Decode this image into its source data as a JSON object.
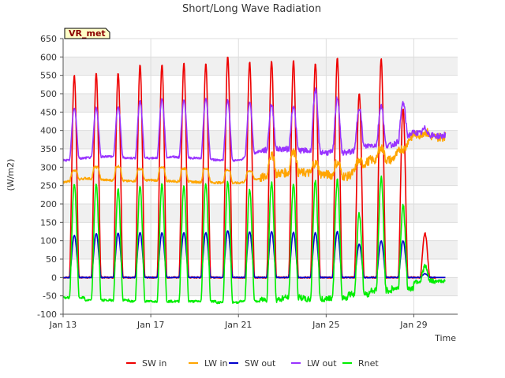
{
  "chart_data": {
    "type": "line",
    "title": "Short/Long Wave Radiation",
    "xlabel": "Time",
    "ylabel": "(W/m2)",
    "badge": "VR_met",
    "ylim": [
      -100,
      650
    ],
    "yticks": [
      -100,
      -50,
      0,
      50,
      100,
      150,
      200,
      250,
      300,
      350,
      400,
      450,
      500,
      550,
      600,
      650
    ],
    "xlim": [
      "2024-01-13",
      "2024-01-31"
    ],
    "xticks": [
      {
        "date": "2024-01-13",
        "label": "Jan 13"
      },
      {
        "date": "2024-01-17",
        "label": "Jan 17"
      },
      {
        "date": "2024-01-21",
        "label": "Jan 21"
      },
      {
        "date": "2024-01-25",
        "label": "Jan 25"
      },
      {
        "date": "2024-01-29",
        "label": "Jan 29"
      }
    ],
    "grid": true,
    "legend_position": "bottom",
    "days": [
      "2024-01-13",
      "2024-01-14",
      "2024-01-15",
      "2024-01-16",
      "2024-01-17",
      "2024-01-18",
      "2024-01-19",
      "2024-01-20",
      "2024-01-21",
      "2024-01-22",
      "2024-01-23",
      "2024-01-24",
      "2024-01-25",
      "2024-01-26",
      "2024-01-27",
      "2024-01-28",
      "2024-01-29",
      "2024-01-30"
    ],
    "series": [
      {
        "name": "SW in",
        "color": "#ee0000",
        "daily_peak": [
          550,
          555,
          557,
          578,
          580,
          583,
          583,
          602,
          586,
          590,
          590,
          582,
          598,
          500,
          596,
          460,
          120,
          null
        ]
      },
      {
        "name": "LW in",
        "color": "#ffa500",
        "night_level": [
          258,
          270,
          265,
          262,
          265,
          262,
          260,
          258,
          257,
          270,
          285,
          285,
          280,
          275,
          320,
          320,
          390,
          382
        ],
        "day_level": [
          290,
          300,
          302,
          295,
          298,
          296,
          296,
          292,
          290,
          330,
          340,
          310,
          310,
          315,
          350,
          350,
          395,
          385
        ]
      },
      {
        "name": "SW out",
        "color": "#0000cc",
        "daily_peak": [
          115,
          120,
          120,
          123,
          122,
          122,
          122,
          128,
          125,
          125,
          123,
          122,
          125,
          90,
          100,
          100,
          10,
          null
        ]
      },
      {
        "name": "LW out",
        "color": "#9933ff",
        "night_level": [
          318,
          325,
          330,
          325,
          325,
          328,
          325,
          320,
          318,
          345,
          350,
          345,
          340,
          340,
          360,
          360,
          395,
          385
        ],
        "day_level": [
          462,
          462,
          465,
          480,
          485,
          485,
          488,
          483,
          478,
          470,
          468,
          510,
          490,
          465,
          470,
          475,
          405,
          390
        ]
      },
      {
        "name": "Rnet",
        "color": "#00ee00",
        "night_level": [
          -55,
          -62,
          -62,
          -65,
          -65,
          -65,
          -65,
          -68,
          -65,
          -60,
          -55,
          -60,
          -55,
          -45,
          -35,
          -30,
          -10,
          -10
        ],
        "daily_peak": [
          255,
          255,
          240,
          250,
          255,
          250,
          255,
          260,
          240,
          260,
          255,
          265,
          265,
          175,
          270,
          195,
          30,
          null
        ]
      }
    ]
  }
}
